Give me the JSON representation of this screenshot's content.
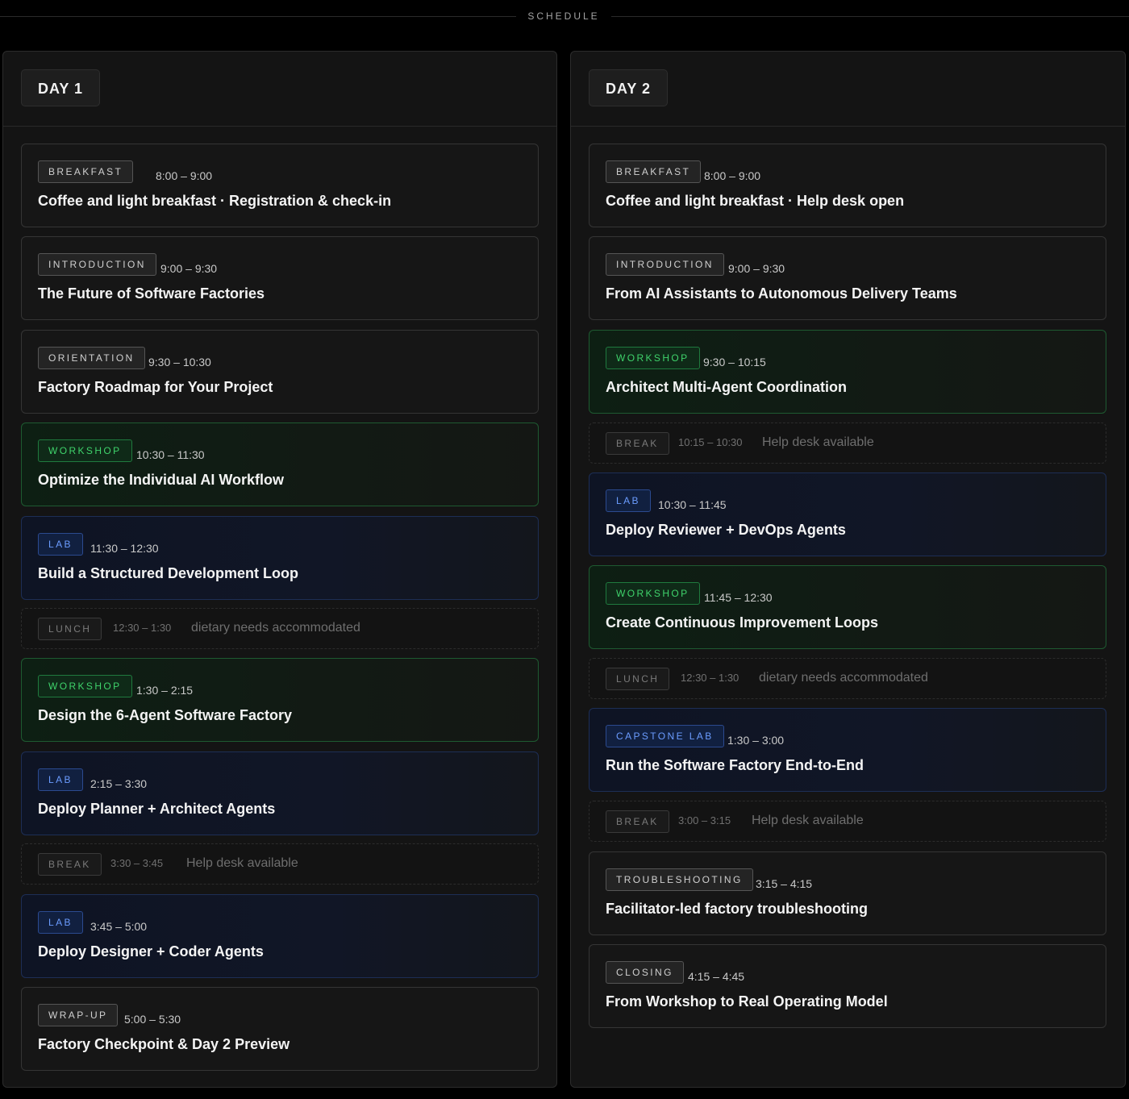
{
  "header": {
    "title": "SCHEDULE"
  },
  "days": [
    {
      "label": "DAY 1",
      "sessions": [
        {
          "tag": "BREAKFAST",
          "time": "8:00 – 9:00",
          "title": "Coffee and light breakfast · Registration & check-in"
        },
        {
          "tag": "INTRODUCTION",
          "time": "9:00 – 9:30",
          "title": "The Future of Software Factories"
        },
        {
          "tag": "ORIENTATION",
          "time": "9:30 – 10:30",
          "title": "Factory Roadmap for Your Project"
        },
        {
          "tag": "WORKSHOP",
          "time": "10:30 – 11:30",
          "title": "Optimize the Individual AI Workflow"
        },
        {
          "tag": "LAB",
          "time": "11:30 – 12:30",
          "title": "Build a Structured Development Loop"
        },
        {
          "tag": "LUNCH",
          "time": "12:30 – 1:30",
          "note": "dietary needs accommodated"
        },
        {
          "tag": "WORKSHOP",
          "time": "1:30 – 2:15",
          "title": "Design the 6-Agent Software Factory"
        },
        {
          "tag": "LAB",
          "time": "2:15 – 3:30",
          "title": "Deploy Planner + Architect Agents"
        },
        {
          "tag": "BREAK",
          "time": "3:30 – 3:45",
          "note": "Help desk available"
        },
        {
          "tag": "LAB",
          "time": "3:45 – 5:00",
          "title": "Deploy Designer + Coder Agents"
        },
        {
          "tag": "WRAP-UP",
          "time": "5:00 – 5:30",
          "title": "Factory Checkpoint & Day 2 Preview"
        }
      ]
    },
    {
      "label": "DAY 2",
      "sessions": [
        {
          "tag": "BREAKFAST",
          "time": "8:00 – 9:00",
          "title": "Coffee and light breakfast · Help desk open"
        },
        {
          "tag": "INTRODUCTION",
          "time": "9:00 – 9:30",
          "title": "From AI Assistants to Autonomous Delivery Teams"
        },
        {
          "tag": "WORKSHOP",
          "time": "9:30 – 10:15",
          "title": "Architect Multi-Agent Coordination"
        },
        {
          "tag": "BREAK",
          "time": "10:15 – 10:30",
          "note": "Help desk available"
        },
        {
          "tag": "LAB",
          "time": "10:30 – 11:45",
          "title": "Deploy Reviewer + DevOps Agents"
        },
        {
          "tag": "WORKSHOP",
          "time": "11:45 – 12:30",
          "title": "Create Continuous Improvement Loops"
        },
        {
          "tag": "LUNCH",
          "time": "12:30 – 1:30",
          "note": "dietary needs accommodated"
        },
        {
          "tag": "CAPSTONE LAB",
          "time": "1:30 – 3:00",
          "title": "Run the Software Factory End-to-End"
        },
        {
          "tag": "BREAK",
          "time": "3:00 – 3:15",
          "note": "Help desk available"
        },
        {
          "tag": "TROUBLESHOOTING",
          "time": "3:15 – 4:15",
          "title": "Facilitator-led factory troubleshooting"
        },
        {
          "tag": "CLOSING",
          "time": "4:15 – 4:45",
          "title": "From Workshop to Real Operating Model"
        }
      ]
    }
  ]
}
